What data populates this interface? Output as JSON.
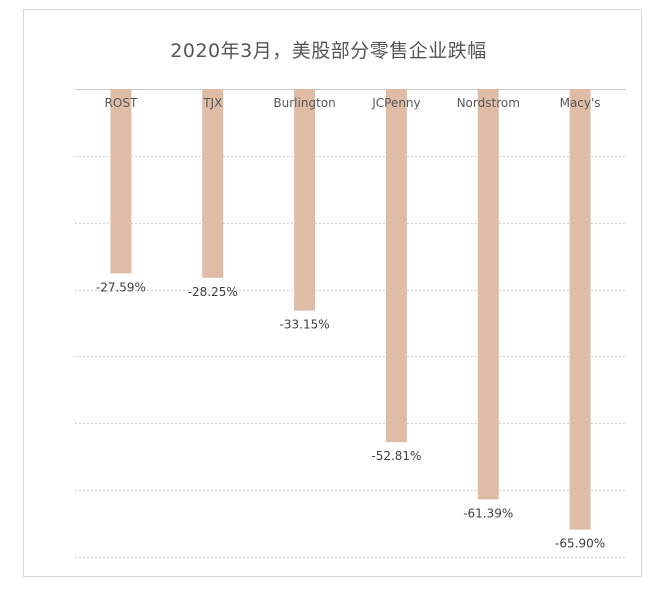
{
  "chart_data": {
    "type": "bar",
    "title": "2020年3月，美股部分零售企业跌幅",
    "categories": [
      "ROST",
      "TJX",
      "Burlington",
      "JCPenny",
      "Nordstrom",
      "Macy's"
    ],
    "values": [
      -27.59,
      -28.25,
      -33.15,
      -52.81,
      -61.39,
      -65.9
    ],
    "data_labels": [
      "-27.59%",
      "-28.25%",
      "-33.15%",
      "-52.81%",
      "-61.39%",
      "-65.90%"
    ],
    "ylim": [
      -70,
      0
    ],
    "grid": true,
    "bar_color": "#dfbca6",
    "grid_color": "#d0d0d0"
  }
}
